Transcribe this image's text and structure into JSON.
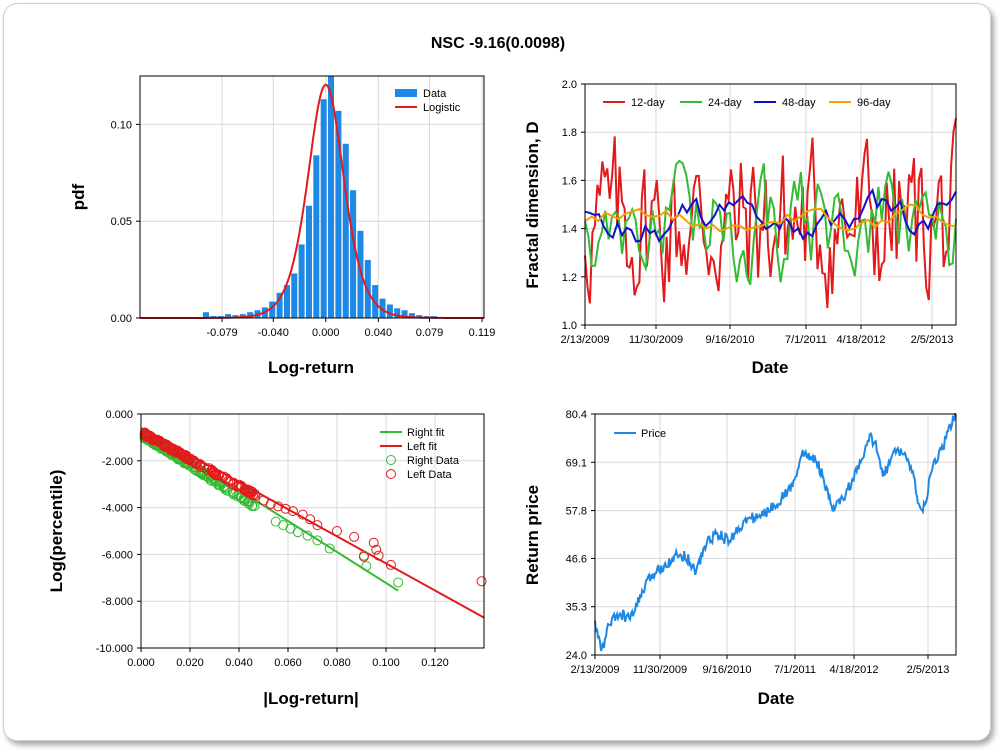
{
  "title": "NSC -9.16(0.0098)",
  "chart_data": [
    {
      "id": "pdf",
      "type": "bar",
      "xlabel": "Log-return",
      "ylabel": "pdf",
      "xlim": [
        -0.1415,
        0.1205
      ],
      "ylim": [
        0,
        0.125
      ],
      "xticks": [
        "-0.079",
        "-0.040",
        "0.000",
        "0.040",
        "0.079",
        "0.119"
      ],
      "xtick_values": [
        -0.079,
        -0.04,
        0.0,
        0.04,
        0.079,
        0.119
      ],
      "yticks": [
        "0.00",
        "0.05",
        "0.10"
      ],
      "ytick_values": [
        0.0,
        0.05,
        0.1
      ],
      "grid": true,
      "legend": [
        "Data",
        "Logistic"
      ],
      "legend_position": "top-right",
      "colors": {
        "Data": "#1e88e5",
        "Logistic": "#e31a1c"
      },
      "bin_width": 0.0056,
      "bins": [
        {
          "x": -0.1192,
          "y": 0.0
        },
        {
          "x": -0.1136,
          "y": 0.0005
        },
        {
          "x": -0.108,
          "y": 0.0005
        },
        {
          "x": -0.1024,
          "y": 0.0
        },
        {
          "x": -0.0968,
          "y": 0.0005
        },
        {
          "x": -0.0912,
          "y": 0.003
        },
        {
          "x": -0.0856,
          "y": 0.001
        },
        {
          "x": -0.08,
          "y": 0.001
        },
        {
          "x": -0.0744,
          "y": 0.002
        },
        {
          "x": -0.0688,
          "y": 0.0015
        },
        {
          "x": -0.0632,
          "y": 0.002
        },
        {
          "x": -0.0576,
          "y": 0.003
        },
        {
          "x": -0.052,
          "y": 0.004
        },
        {
          "x": -0.0464,
          "y": 0.0055
        },
        {
          "x": -0.0408,
          "y": 0.0085
        },
        {
          "x": -0.0352,
          "y": 0.013
        },
        {
          "x": -0.0296,
          "y": 0.017
        },
        {
          "x": -0.024,
          "y": 0.023
        },
        {
          "x": -0.0184,
          "y": 0.038
        },
        {
          "x": -0.0128,
          "y": 0.058
        },
        {
          "x": -0.0072,
          "y": 0.084
        },
        {
          "x": -0.0016,
          "y": 0.113
        },
        {
          "x": 0.004,
          "y": 0.125
        },
        {
          "x": 0.0096,
          "y": 0.107
        },
        {
          "x": 0.0152,
          "y": 0.09
        },
        {
          "x": 0.0208,
          "y": 0.066
        },
        {
          "x": 0.0264,
          "y": 0.045
        },
        {
          "x": 0.032,
          "y": 0.03
        },
        {
          "x": 0.0376,
          "y": 0.017
        },
        {
          "x": 0.0432,
          "y": 0.01
        },
        {
          "x": 0.0488,
          "y": 0.007
        },
        {
          "x": 0.0544,
          "y": 0.005
        },
        {
          "x": 0.06,
          "y": 0.004
        },
        {
          "x": 0.0656,
          "y": 0.0025
        },
        {
          "x": 0.0712,
          "y": 0.0015
        },
        {
          "x": 0.0768,
          "y": 0.001
        },
        {
          "x": 0.0824,
          "y": 0.001
        },
        {
          "x": 0.088,
          "y": 0.0005
        },
        {
          "x": 0.0936,
          "y": 0.0005
        },
        {
          "x": 0.0992,
          "y": 0.0005
        },
        {
          "x": 0.1048,
          "y": 0.0005
        }
      ],
      "logistic": {
        "mu": 0.0,
        "s": 0.002
      }
    },
    {
      "id": "fractal",
      "type": "line",
      "xlabel": "Date",
      "ylabel": "Fractal dimension, D",
      "ylim": [
        1.0,
        2.0
      ],
      "yticks": [
        "1.0",
        "1.2",
        "1.4",
        "1.6",
        "1.8",
        "2.0"
      ],
      "ytick_values": [
        1.0,
        1.2,
        1.4,
        1.6,
        1.8,
        2.0
      ],
      "xticks": [
        "2/13/2009",
        "11/30/2009",
        "9/16/2010",
        "7/1/2011",
        "4/18/2012",
        "2/5/2013"
      ],
      "grid": true,
      "legend_position": "top",
      "series": [
        {
          "name": "12-day",
          "color": "#e31a1c"
        },
        {
          "name": "24-day",
          "color": "#33bb33"
        },
        {
          "name": "48-day",
          "color": "#1010cc"
        },
        {
          "name": "96-day",
          "color": "#f5a000"
        }
      ]
    },
    {
      "id": "tail",
      "type": "scatter",
      "xlabel": "|Log-return|",
      "ylabel": "Log(percentile)",
      "xlim": [
        0.0,
        0.14
      ],
      "ylim": [
        -10.0,
        0.0
      ],
      "xticks": [
        "0.000",
        "0.020",
        "0.040",
        "0.060",
        "0.080",
        "0.100",
        "0.120"
      ],
      "xtick_values": [
        0.0,
        0.02,
        0.04,
        0.06,
        0.08,
        0.1,
        0.12
      ],
      "yticks": [
        "0.000",
        "-2.000",
        "-4.000",
        "-6.000",
        "-8.000",
        "-10.000"
      ],
      "ytick_values": [
        0.0,
        -2.0,
        -4.0,
        -6.0,
        -8.0,
        -10.0
      ],
      "grid": true,
      "legend_position": "top-right",
      "right_fit": {
        "name": "Right fit",
        "color": "#33bb33",
        "x": [
          0.0,
          0.105
        ],
        "y": [
          -0.6,
          -7.55
        ]
      },
      "left_fit": {
        "name": "Left fit",
        "color": "#e31a1c",
        "x": [
          0.0,
          0.14
        ],
        "y": [
          -0.6,
          -8.7
        ]
      },
      "right_data": {
        "name": "Right Data",
        "color": "#33bb33",
        "points": [
          [
            0.055,
            -4.6
          ],
          [
            0.058,
            -4.75
          ],
          [
            0.061,
            -4.9
          ],
          [
            0.064,
            -5.05
          ],
          [
            0.068,
            -5.2
          ],
          [
            0.072,
            -5.4
          ],
          [
            0.077,
            -5.75
          ],
          [
            0.091,
            -6.05
          ],
          [
            0.092,
            -6.5
          ],
          [
            0.105,
            -7.2
          ]
        ]
      },
      "left_data": {
        "name": "Left Data",
        "color": "#e31a1c",
        "points": [
          [
            0.05,
            -3.7
          ],
          [
            0.053,
            -3.85
          ],
          [
            0.056,
            -3.95
          ],
          [
            0.059,
            -4.05
          ],
          [
            0.062,
            -4.15
          ],
          [
            0.066,
            -4.3
          ],
          [
            0.069,
            -4.5
          ],
          [
            0.072,
            -4.75
          ],
          [
            0.08,
            -5.0
          ],
          [
            0.087,
            -5.25
          ],
          [
            0.091,
            -6.1
          ],
          [
            0.095,
            -5.5
          ],
          [
            0.096,
            -5.8
          ],
          [
            0.097,
            -6.05
          ],
          [
            0.102,
            -6.45
          ],
          [
            0.139,
            -7.15
          ]
        ]
      }
    },
    {
      "id": "price",
      "type": "line",
      "xlabel": "Date",
      "ylabel": "Return price",
      "ylim": [
        24.0,
        80.4
      ],
      "yticks": [
        "24.0",
        "35.3",
        "46.6",
        "57.8",
        "69.1",
        "80.4"
      ],
      "ytick_values": [
        24.0,
        35.3,
        46.6,
        57.8,
        69.1,
        80.4
      ],
      "xticks": [
        "2/13/2009",
        "11/30/2009",
        "9/16/2010",
        "7/1/2011",
        "4/18/2012",
        "2/5/2013"
      ],
      "grid": true,
      "legend_position": "top-left",
      "series": [
        {
          "name": "Price",
          "color": "#1e88e5",
          "anchors": [
            [
              0.0,
              31.0
            ],
            [
              0.02,
              25.0
            ],
            [
              0.04,
              31.5
            ],
            [
              0.07,
              33.5
            ],
            [
              0.1,
              32.5
            ],
            [
              0.13,
              38.5
            ],
            [
              0.16,
              43.0
            ],
            [
              0.19,
              45.0
            ],
            [
              0.22,
              47.0
            ],
            [
              0.25,
              47.5
            ],
            [
              0.28,
              43.5
            ],
            [
              0.31,
              50.5
            ],
            [
              0.34,
              52.5
            ],
            [
              0.37,
              50.5
            ],
            [
              0.4,
              54.0
            ],
            [
              0.43,
              56.0
            ],
            [
              0.46,
              56.5
            ],
            [
              0.49,
              58.5
            ],
            [
              0.52,
              61.0
            ],
            [
              0.55,
              64.0
            ],
            [
              0.57,
              71.0
            ],
            [
              0.59,
              70.5
            ],
            [
              0.61,
              70.0
            ],
            [
              0.63,
              66.0
            ],
            [
              0.64,
              62.5
            ],
            [
              0.66,
              58.0
            ],
            [
              0.69,
              61.0
            ],
            [
              0.72,
              66.0
            ],
            [
              0.74,
              69.5
            ],
            [
              0.76,
              75.0
            ],
            [
              0.78,
              73.0
            ],
            [
              0.8,
              66.0
            ],
            [
              0.82,
              70.0
            ],
            [
              0.84,
              72.0
            ],
            [
              0.86,
              71.0
            ],
            [
              0.88,
              66.0
            ],
            [
              0.89,
              62.5
            ],
            [
              0.905,
              56.5
            ],
            [
              0.92,
              61.5
            ],
            [
              0.935,
              68.0
            ],
            [
              0.95,
              70.5
            ],
            [
              0.965,
              73.0
            ],
            [
              0.98,
              76.5
            ],
            [
              1.0,
              81.0
            ]
          ]
        }
      ]
    }
  ]
}
